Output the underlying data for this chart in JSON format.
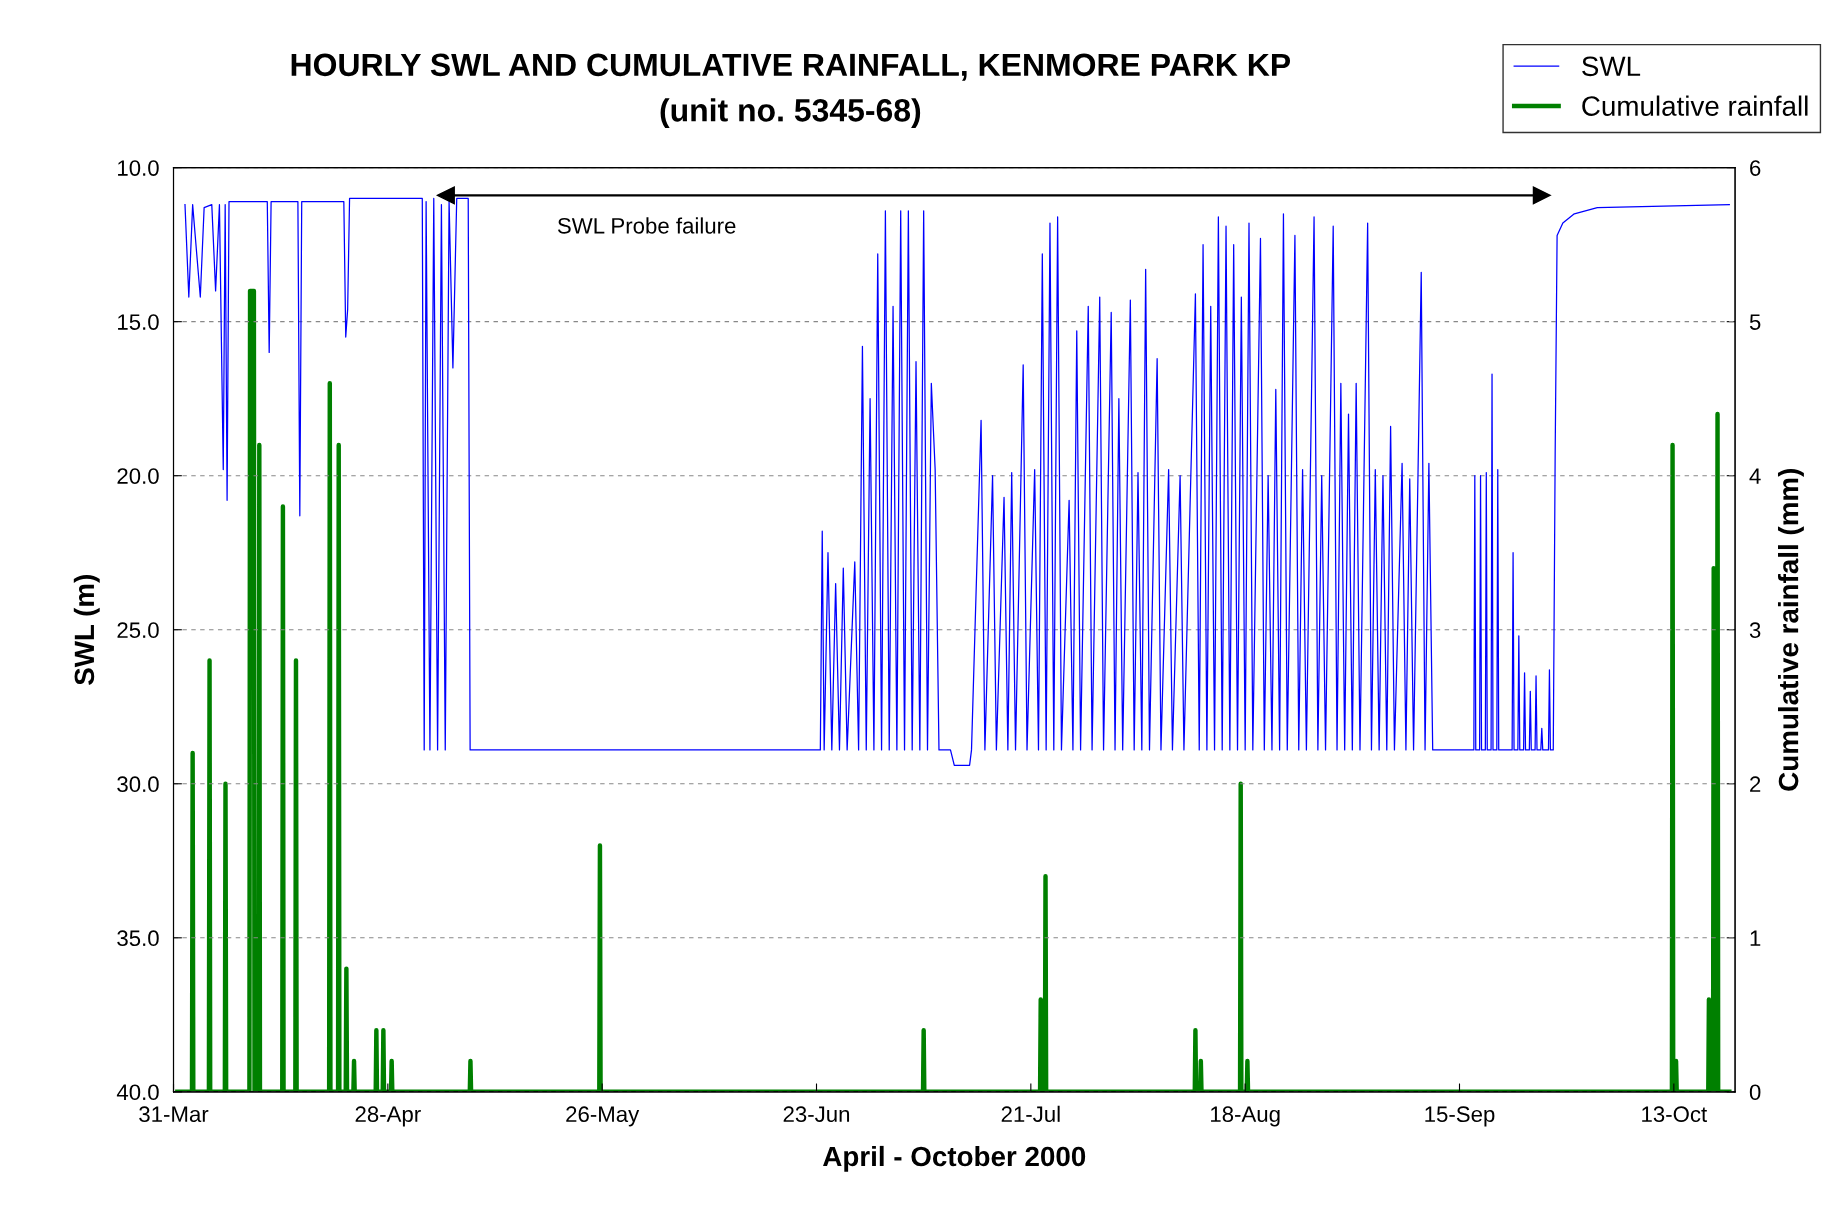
{
  "chart_data": {
    "type": "line",
    "title": "HOURLY SWL AND CUMULATIVE RAINFALL, KENMORE PARK KP",
    "subtitle": "(unit no. 5345-68)",
    "xlabel": "April - October 2000",
    "ylabel": "SWL (m)",
    "y2label": "Cumulative rainfall (mm)",
    "xlim": [
      "2000-03-31",
      "2000-10-21"
    ],
    "xticks": [
      {
        "value": "2000-03-31",
        "label": "31-Mar"
      },
      {
        "value": "2000-04-28",
        "label": "28-Apr"
      },
      {
        "value": "2000-05-26",
        "label": "26-May"
      },
      {
        "value": "2000-06-23",
        "label": "23-Jun"
      },
      {
        "value": "2000-07-21",
        "label": "21-Jul"
      },
      {
        "value": "2000-08-18",
        "label": "18-Aug"
      },
      {
        "value": "2000-09-15",
        "label": "15-Sep"
      },
      {
        "value": "2000-10-13",
        "label": "13-Oct"
      }
    ],
    "ylim": [
      40,
      10
    ],
    "yticks": [
      {
        "value": 10,
        "label": "10.0"
      },
      {
        "value": 15,
        "label": "15.0"
      },
      {
        "value": 20,
        "label": "20.0"
      },
      {
        "value": 25,
        "label": "25.0"
      },
      {
        "value": 30,
        "label": "30.0"
      },
      {
        "value": 35,
        "label": "35.0"
      },
      {
        "value": 40,
        "label": "40.0"
      }
    ],
    "y2lim": [
      0,
      6
    ],
    "y2ticks": [
      0,
      1,
      2,
      3,
      4,
      5,
      6
    ],
    "grid": "y",
    "legend": "top right",
    "annotations": [
      "SWL Probe failure"
    ],
    "series": [
      {
        "name": "SWL",
        "color": "#0000ff",
        "axis": "y",
        "x": [
          "2000-04-01T12:00",
          "2000-04-02T00:00",
          "2000-04-02T12:00",
          "2000-04-03T12:00",
          "2000-04-04T00:00",
          "2000-04-05T00:00",
          "2000-04-05T12:00",
          "2000-04-06T00:00",
          "2000-04-06T12:00",
          "2000-04-06T18:00",
          "2000-04-07T00:00",
          "2000-04-07T06:00",
          "2000-04-12T06:00",
          "2000-04-12T12:00",
          "2000-04-12T18:00",
          "2000-04-16T06:00",
          "2000-04-16T12:00",
          "2000-04-16T18:00",
          "2000-04-22T06:00",
          "2000-04-22T12:00",
          "2000-04-22T18:00",
          "2000-04-23T00:00",
          "2000-05-02T12:00",
          "2000-05-02T18:00",
          "2000-05-03T00:00",
          "2000-05-03T12:00",
          "2000-05-04T00:00",
          "2000-05-04T12:00",
          "2000-05-05T00:00",
          "2000-05-05T12:00",
          "2000-05-06T00:00",
          "2000-05-06T12:00",
          "2000-05-07T00:00",
          "2000-05-08T12:00",
          "2000-05-08T18:00",
          "2000-06-23T12:00",
          "2000-06-23T18:00",
          "2000-06-24T00:00",
          "2000-06-24T12:00",
          "2000-06-25T00:00",
          "2000-06-25T12:00",
          "2000-06-26T00:00",
          "2000-06-26T12:00",
          "2000-06-27T00:00",
          "2000-06-28T00:00",
          "2000-06-28T12:00",
          "2000-06-29T00:00",
          "2000-06-29T12:00",
          "2000-06-30T00:00",
          "2000-06-30T12:00",
          "2000-07-01T00:00",
          "2000-07-01T12:00",
          "2000-07-02T00:00",
          "2000-07-02T12:00",
          "2000-07-03T00:00",
          "2000-07-03T12:00",
          "2000-07-04T00:00",
          "2000-07-04T12:00",
          "2000-07-05T00:00",
          "2000-07-05T12:00",
          "2000-07-06T00:00",
          "2000-07-06T12:00",
          "2000-07-07T00:00",
          "2000-07-07T12:00",
          "2000-07-08T00:00",
          "2000-07-08T12:00",
          "2000-07-09T00:00",
          "2000-07-10T12:00",
          "2000-07-11T00:00",
          "2000-07-13T00:00",
          "2000-07-13T06:00",
          "2000-07-14T12:00",
          "2000-07-15T00:00",
          "2000-07-16T00:00",
          "2000-07-16T12:00",
          "2000-07-17T12:00",
          "2000-07-18T00:00",
          "2000-07-18T12:00",
          "2000-07-19T00:00",
          "2000-07-20T00:00",
          "2000-07-20T12:00",
          "2000-07-21T12:00",
          "2000-07-22T00:00",
          "2000-07-22T12:00",
          "2000-07-23T00:00",
          "2000-07-23T12:00",
          "2000-07-24T00:00",
          "2000-07-24T12:00",
          "2000-07-25T00:00",
          "2000-07-26T00:00",
          "2000-07-26T12:00",
          "2000-07-27T00:00",
          "2000-07-27T12:00",
          "2000-07-28T12:00",
          "2000-07-29T00:00",
          "2000-07-30T00:00",
          "2000-07-30T12:00",
          "2000-07-31T12:00",
          "2000-08-01T00:00",
          "2000-08-01T12:00",
          "2000-08-02T00:00",
          "2000-08-03T00:00",
          "2000-08-03T12:00",
          "2000-08-04T00:00",
          "2000-08-04T12:00",
          "2000-08-05T00:00",
          "2000-08-05T12:00",
          "2000-08-06T12:00",
          "2000-08-07T00:00",
          "2000-08-08T00:00",
          "2000-08-08T12:00",
          "2000-08-09T12:00",
          "2000-08-10T00:00",
          "2000-08-11T12:00",
          "2000-08-12T00:00",
          "2000-08-12T12:00",
          "2000-08-13T00:00",
          "2000-08-13T12:00",
          "2000-08-14T00:00",
          "2000-08-14T12:00",
          "2000-08-15T00:00",
          "2000-08-15T12:00",
          "2000-08-16T00:00",
          "2000-08-16T12:00",
          "2000-08-17T00:00",
          "2000-08-17T12:00",
          "2000-08-18T00:00",
          "2000-08-18T12:00",
          "2000-08-19T00:00",
          "2000-08-20T00:00",
          "2000-08-20T12:00",
          "2000-08-21T00:00",
          "2000-08-21T12:00",
          "2000-08-22T00:00",
          "2000-08-22T12:00",
          "2000-08-23T00:00",
          "2000-08-23T12:00",
          "2000-08-24T12:00",
          "2000-08-25T00:00",
          "2000-08-25T12:00",
          "2000-08-26T00:00",
          "2000-08-27T00:00",
          "2000-08-27T12:00",
          "2000-08-28T00:00",
          "2000-08-28T12:00",
          "2000-08-29T12:00",
          "2000-08-30T00:00",
          "2000-08-30T12:00",
          "2000-08-31T00:00",
          "2000-08-31T12:00",
          "2000-09-01T00:00",
          "2000-09-01T12:00",
          "2000-09-02T00:00",
          "2000-09-03T00:00",
          "2000-09-03T12:00",
          "2000-09-04T00:00",
          "2000-09-04T12:00",
          "2000-09-05T00:00",
          "2000-09-05T12:00",
          "2000-09-06T00:00",
          "2000-09-06T12:00",
          "2000-09-07T12:00",
          "2000-09-08T00:00",
          "2000-09-08T12:00",
          "2000-09-09T00:00",
          "2000-09-10T00:00",
          "2000-09-10T12:00",
          "2000-09-11T00:00",
          "2000-09-11T12:00",
          "2000-09-16T21:00",
          "2000-09-17T00:00",
          "2000-09-17T03:00",
          "2000-09-17T15:00",
          "2000-09-17T18:00",
          "2000-09-17T21:00",
          "2000-09-18T09:00",
          "2000-09-18T12:00",
          "2000-09-18T15:00",
          "2000-09-19T03:00",
          "2000-09-19T06:00",
          "2000-09-19T09:00",
          "2000-09-19T21:00",
          "2000-09-20T00:00",
          "2000-09-20T03:00",
          "2000-09-21T21:00",
          "2000-09-22T00:00",
          "2000-09-22T03:00",
          "2000-09-22T15:00",
          "2000-09-22T18:00",
          "2000-09-22T21:00",
          "2000-09-23T09:00",
          "2000-09-23T12:00",
          "2000-09-23T15:00",
          "2000-09-24T03:00",
          "2000-09-24T06:00",
          "2000-09-24T09:00",
          "2000-09-24T21:00",
          "2000-09-25T00:00",
          "2000-09-25T03:00",
          "2000-09-25T15:00",
          "2000-09-25T18:00",
          "2000-09-25T21:00",
          "2000-09-26T15:00",
          "2000-09-26T18:00",
          "2000-09-26T21:00",
          "2000-09-27T06:00",
          "2000-09-27T12:00",
          "2000-09-27T18:00",
          "2000-09-28T12:00",
          "2000-09-30T00:00",
          "2000-10-03T00:00",
          "2000-10-20T06:00"
        ],
        "values": [
          11.2,
          14.2,
          11.2,
          14.2,
          11.3,
          11.2,
          14.0,
          11.2,
          19.8,
          11.2,
          20.8,
          11.1,
          11.1,
          16.0,
          11.1,
          11.1,
          21.3,
          11.1,
          11.1,
          15.5,
          14.6,
          11.0,
          11.0,
          28.9,
          11.1,
          28.9,
          11.0,
          28.9,
          11.2,
          28.9,
          11.1,
          16.5,
          11.0,
          11.0,
          28.9,
          28.9,
          21.8,
          28.9,
          22.5,
          28.9,
          23.5,
          28.9,
          23.0,
          28.9,
          22.8,
          28.9,
          15.8,
          28.9,
          17.5,
          28.9,
          12.8,
          28.9,
          11.4,
          28.9,
          14.5,
          28.9,
          11.4,
          28.9,
          11.4,
          28.9,
          16.3,
          28.9,
          11.4,
          28.9,
          17.0,
          19.8,
          28.9,
          28.9,
          29.4,
          29.4,
          28.9,
          18.2,
          28.9,
          20.0,
          28.9,
          20.7,
          28.9,
          19.9,
          28.9,
          16.4,
          28.9,
          19.8,
          28.9,
          12.8,
          28.9,
          11.8,
          28.9,
          11.6,
          28.9,
          20.8,
          28.9,
          15.3,
          28.9,
          14.5,
          28.9,
          14.2,
          28.9,
          14.7,
          28.9,
          17.5,
          28.9,
          14.3,
          28.9,
          19.9,
          28.9,
          13.3,
          28.9,
          16.2,
          28.9,
          19.8,
          28.9,
          20.0,
          28.9,
          14.1,
          28.9,
          12.5,
          28.9,
          14.5,
          28.9,
          11.6,
          28.9,
          11.9,
          28.9,
          12.5,
          28.9,
          14.2,
          28.9,
          11.8,
          28.9,
          12.3,
          28.9,
          20.0,
          28.9,
          17.2,
          28.9,
          11.5,
          28.9,
          12.2,
          28.9,
          19.8,
          28.9,
          11.6,
          28.9,
          20.0,
          28.9,
          11.9,
          28.9,
          17.0,
          28.9,
          18.0,
          28.9,
          17.0,
          28.9,
          11.8,
          28.9,
          19.8,
          28.9,
          20.0,
          28.9,
          18.4,
          28.9,
          19.6,
          28.9,
          20.1,
          28.9,
          13.4,
          28.9,
          19.6,
          28.9,
          28.9,
          20.0,
          28.9,
          28.9,
          20.0,
          28.9,
          28.9,
          19.9,
          28.9,
          28.9,
          16.7,
          28.9,
          28.9,
          19.8,
          28.9,
          28.9,
          22.5,
          28.9,
          28.9,
          25.2,
          28.9,
          28.9,
          26.4,
          28.9,
          28.9,
          27.0,
          28.9,
          28.9,
          26.5,
          28.9,
          28.9,
          28.2,
          28.9,
          28.9,
          26.3,
          28.9,
          28.9,
          19.2,
          12.2,
          11.8,
          11.5,
          11.3,
          11.2
        ]
      },
      {
        "type": "line",
        "color": "#000000",
        "axis": "y",
        "marker": "triangle",
        "x": [
          "2000-05-05T14:00",
          "2000-09-25T18:00"
        ],
        "values": [
          10.9,
          10.9
        ]
      },
      {
        "name": "Cumulative rainfall",
        "color": "#008000",
        "axis": "y2",
        "x": [
          "2000-03-31T12:00",
          "2000-04-02T10:00",
          "2000-04-02T12:00",
          "2000-04-02T14:00",
          "2000-04-04T15:00",
          "2000-04-04T17:00",
          "2000-04-04T19:00",
          "2000-04-06T17:00",
          "2000-04-06T19:00",
          "2000-04-06T21:00",
          "2000-04-09T22:00",
          "2000-04-10T00:00",
          "2000-04-10T12:00",
          "2000-04-10T14:00",
          "2000-04-11T03:00",
          "2000-04-11T05:00",
          "2000-04-11T07:00",
          "2000-04-14T05:00",
          "2000-04-14T07:00",
          "2000-04-14T09:00",
          "2000-04-15T22:00",
          "2000-04-16T00:00",
          "2000-04-16T02:00",
          "2000-04-20T08:00",
          "2000-04-20T10:00",
          "2000-04-20T12:00",
          "2000-04-21T12:00",
          "2000-04-21T14:00",
          "2000-04-21T16:00",
          "2000-04-22T12:00",
          "2000-04-22T14:00",
          "2000-04-22T16:00",
          "2000-04-23T12:00",
          "2000-04-23T14:00",
          "2000-04-23T16:00",
          "2000-04-26T10:00",
          "2000-04-26T12:00",
          "2000-04-26T14:00",
          "2000-04-27T08:00",
          "2000-04-27T10:00",
          "2000-04-27T12:00",
          "2000-04-28T10:00",
          "2000-04-28T12:00",
          "2000-04-28T14:00",
          "2000-05-08T17:00",
          "2000-05-08T19:00",
          "2000-05-08T21:00",
          "2000-05-25T15:00",
          "2000-05-25T17:00",
          "2000-05-25T19:00",
          "2000-07-06T22:00",
          "2000-07-07T00:00",
          "2000-07-07T02:00",
          "2000-07-22T05:00",
          "2000-07-22T07:00",
          "2000-07-22T09:00",
          "2000-07-22T20:00",
          "2000-07-22T22:00",
          "2000-07-23T00:00",
          "2000-08-11T10:00",
          "2000-08-11T12:00",
          "2000-08-11T14:00",
          "2000-08-12T03:00",
          "2000-08-12T05:00",
          "2000-08-12T07:00",
          "2000-08-17T08:00",
          "2000-08-17T10:00",
          "2000-08-17T12:00",
          "2000-08-18T05:00",
          "2000-08-18T07:00",
          "2000-08-18T09:00",
          "2000-10-12T18:00",
          "2000-10-12T20:00",
          "2000-10-12T22:00",
          "2000-10-13T05:00",
          "2000-10-13T07:00",
          "2000-10-13T09:00",
          "2000-10-17T12:00",
          "2000-10-17T14:00",
          "2000-10-17T16:00",
          "2000-10-18T03:00",
          "2000-10-18T05:00",
          "2000-10-18T07:00",
          "2000-10-18T15:00",
          "2000-10-18T17:00",
          "2000-10-18T19:00",
          "2000-10-20T06:00"
        ],
        "values": [
          0,
          0,
          2.2,
          0,
          0,
          2.8,
          0,
          0,
          2.0,
          0,
          0,
          5.2,
          5.2,
          0,
          0,
          4.2,
          0,
          0,
          3.8,
          0,
          0,
          2.8,
          0,
          0,
          4.6,
          0,
          0,
          4.2,
          0,
          0,
          0.8,
          0,
          0,
          0.2,
          0,
          0,
          0.4,
          0,
          0,
          0.4,
          0,
          0,
          0.2,
          0,
          0,
          0.2,
          0,
          0,
          1.6,
          0,
          0,
          0.4,
          0,
          0,
          0.6,
          0,
          0,
          1.4,
          0,
          0,
          0.4,
          0,
          0,
          0.2,
          0,
          0,
          2.0,
          0,
          0,
          0.2,
          0,
          0,
          4.2,
          0,
          0,
          0.2,
          0,
          0,
          0.6,
          0,
          0,
          3.4,
          0,
          0,
          4.4,
          0,
          0
        ]
      }
    ]
  }
}
